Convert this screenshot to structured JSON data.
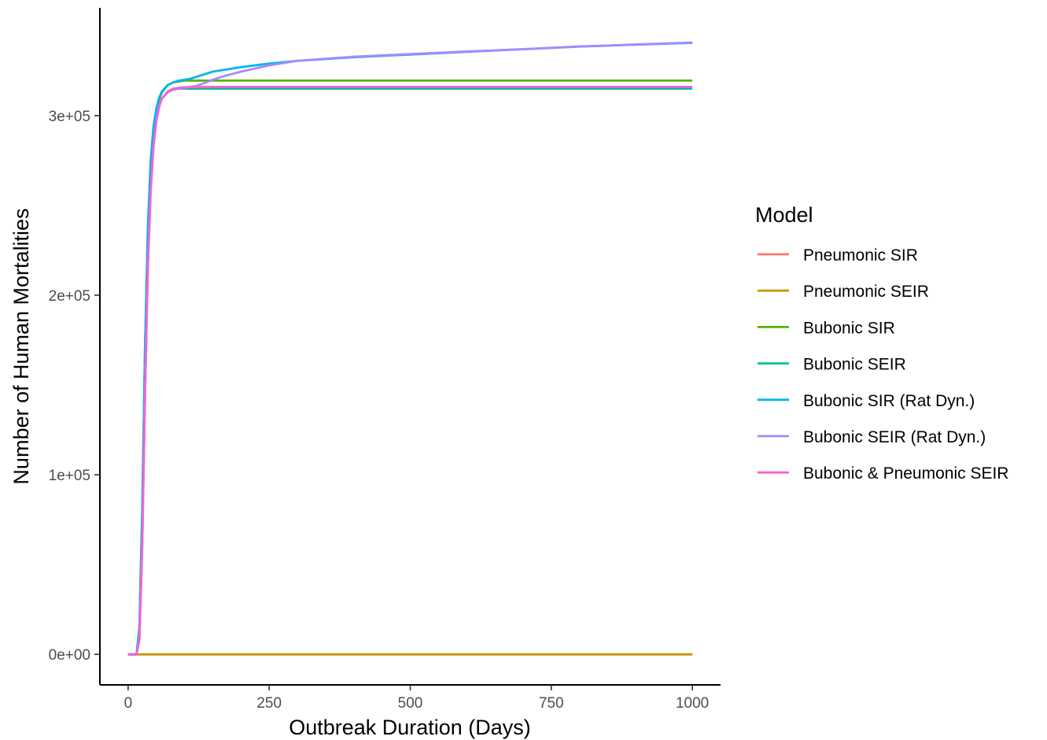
{
  "chart_data": {
    "type": "line",
    "xlabel": "Outbreak Duration (Days)",
    "ylabel": "Number of Human Mortalities",
    "xlim": [
      -50,
      1050
    ],
    "ylim": [
      -17000,
      360000
    ],
    "x_ticks": [
      0,
      250,
      500,
      750,
      1000
    ],
    "x_tick_labels": [
      "0",
      "250",
      "500",
      "750",
      "1000"
    ],
    "y_ticks": [
      0,
      100000,
      200000,
      300000
    ],
    "y_tick_labels": [
      "0e+00",
      "1e+05",
      "2e+05",
      "3e+05"
    ],
    "grid": false,
    "legend": {
      "title": "Model",
      "position": "right"
    },
    "series": [
      {
        "name": "Pneumonic SIR",
        "color": "#F8766D",
        "x": [
          0,
          1000
        ],
        "y": [
          0,
          0
        ]
      },
      {
        "name": "Pneumonic SEIR",
        "color": "#C49A00",
        "x": [
          0,
          1000
        ],
        "y": [
          0,
          0
        ]
      },
      {
        "name": "Bubonic SIR",
        "color": "#53B400",
        "x": [
          0,
          10,
          15,
          20,
          25,
          30,
          35,
          40,
          45,
          50,
          55,
          60,
          70,
          80,
          90,
          100,
          120,
          150,
          200,
          1000
        ],
        "y": [
          0,
          0,
          0,
          15000,
          80000,
          170000,
          235000,
          272000,
          292000,
          303000,
          309000,
          313000,
          317000,
          318500,
          319000,
          319500,
          319500,
          319500,
          319500,
          319500
        ]
      },
      {
        "name": "Bubonic SEIR",
        "color": "#00C094",
        "x": [
          0,
          10,
          15,
          20,
          25,
          30,
          35,
          40,
          45,
          50,
          55,
          60,
          70,
          80,
          90,
          100,
          150,
          1000
        ],
        "y": [
          0,
          0,
          0,
          12000,
          70000,
          160000,
          230000,
          268000,
          289000,
          300000,
          306000,
          309500,
          313000,
          314500,
          315000,
          315000,
          315000,
          315000
        ]
      },
      {
        "name": "Bubonic SIR (Rat Dyn.)",
        "color": "#00B6EB",
        "x": [
          0,
          10,
          15,
          20,
          25,
          30,
          35,
          40,
          45,
          50,
          55,
          60,
          70,
          80,
          90,
          100,
          110,
          120,
          130,
          150,
          170,
          200,
          250,
          300,
          400,
          500,
          600,
          700,
          800,
          900,
          1000
        ],
        "y": [
          0,
          0,
          0,
          15000,
          80000,
          172000,
          238000,
          275000,
          294000,
          304000,
          310000,
          313500,
          317000,
          318500,
          319500,
          320000,
          320500,
          321500,
          322500,
          324500,
          325500,
          327000,
          329000,
          330500,
          332500,
          334000,
          335500,
          337000,
          338500,
          339500,
          340500
        ]
      },
      {
        "name": "Bubonic SEIR (Rat Dyn.)",
        "color": "#A58AFF",
        "x": [
          0,
          10,
          15,
          20,
          25,
          30,
          35,
          40,
          45,
          50,
          55,
          60,
          70,
          80,
          90,
          100,
          110,
          120,
          130,
          150,
          170,
          200,
          250,
          300,
          400,
          500,
          600,
          700,
          800,
          900,
          1000
        ],
        "y": [
          0,
          0,
          0,
          8000,
          60000,
          145000,
          215000,
          258000,
          283000,
          297000,
          305000,
          309500,
          313000,
          314500,
          315000,
          315500,
          316000,
          316500,
          317500,
          320000,
          322000,
          324500,
          328000,
          330500,
          332800,
          334300,
          335700,
          337000,
          338400,
          339600,
          340700
        ]
      },
      {
        "name": "Bubonic & Pneumonic SEIR",
        "color": "#FB61D7",
        "x": [
          0,
          10,
          15,
          20,
          25,
          30,
          35,
          40,
          45,
          50,
          55,
          60,
          70,
          80,
          90,
          100,
          150,
          1000
        ],
        "y": [
          0,
          0,
          0,
          8000,
          60000,
          145000,
          215000,
          258000,
          283000,
          297000,
          305000,
          309500,
          313500,
          315000,
          315500,
          315800,
          316000,
          316000
        ]
      }
    ]
  }
}
